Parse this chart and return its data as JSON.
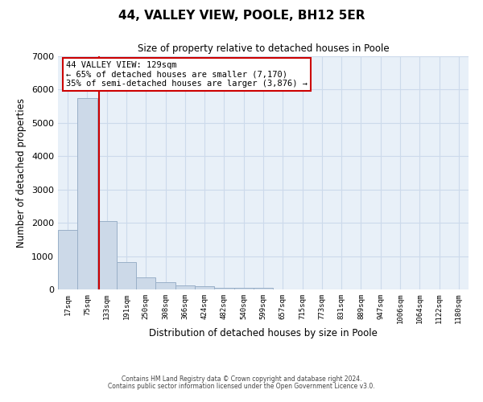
{
  "title": "44, VALLEY VIEW, POOLE, BH12 5ER",
  "subtitle": "Size of property relative to detached houses in Poole",
  "xlabel": "Distribution of detached houses by size in Poole",
  "ylabel": "Number of detached properties",
  "bar_labels": [
    "17sqm",
    "75sqm",
    "133sqm",
    "191sqm",
    "250sqm",
    "308sqm",
    "366sqm",
    "424sqm",
    "482sqm",
    "540sqm",
    "599sqm",
    "657sqm",
    "715sqm",
    "773sqm",
    "831sqm",
    "889sqm",
    "947sqm",
    "1006sqm",
    "1064sqm",
    "1122sqm",
    "1180sqm"
  ],
  "bar_heights": [
    1780,
    5750,
    2060,
    820,
    370,
    220,
    130,
    90,
    60,
    55,
    55,
    0,
    0,
    0,
    0,
    0,
    0,
    0,
    0,
    0,
    0
  ],
  "bar_color": "#ccd9e8",
  "bar_edge_color": "#9ab0c8",
  "vline_x_index": 1.58,
  "vline_color": "#cc0000",
  "ylim": [
    0,
    7000
  ],
  "yticks": [
    0,
    1000,
    2000,
    3000,
    4000,
    5000,
    6000,
    7000
  ],
  "annotation_text": "44 VALLEY VIEW: 129sqm\n← 65% of detached houses are smaller (7,170)\n35% of semi-detached houses are larger (3,876) →",
  "annotation_box_facecolor": "#ffffff",
  "annotation_box_edgecolor": "#cc0000",
  "footer_line1": "Contains HM Land Registry data © Crown copyright and database right 2024.",
  "footer_line2": "Contains public sector information licensed under the Open Government Licence v3.0.",
  "grid_color": "#ccdaeb",
  "background_color": "#e8f0f8"
}
